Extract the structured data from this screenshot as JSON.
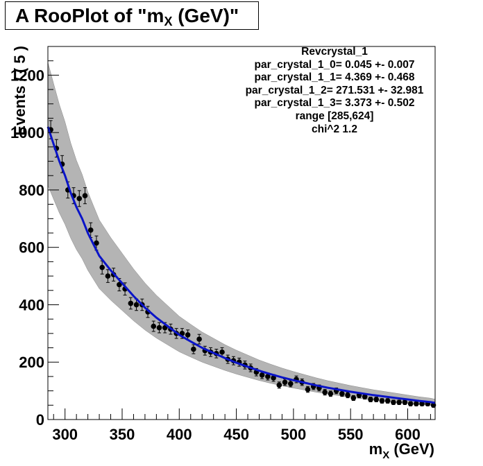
{
  "title": {
    "prefix": "A RooPlot of \"m",
    "sub": "X",
    "suffix": " (GeV)\""
  },
  "stats_box": {
    "lines": [
      "Revcrystal_1",
      "par_crystal_1_0= 0.045 +- 0.007",
      "par_crystal_1_1= 4.369 +- 0.468",
      "par_crystal_1_2= 271.531 +- 32.981",
      "par_crystal_1_3= 3.373 +- 0.502",
      "range [285,624]",
      "chi^2 1.2"
    ]
  },
  "colors": {
    "fit_line": "#0a14c8",
    "band": "#b4b4b4",
    "points": "#000000",
    "frame": "#000000"
  },
  "chart_data": {
    "type": "scatter",
    "xlabel": {
      "main": "m",
      "sub": "X",
      "rest": " (GeV)"
    },
    "ylabel": "Events / ( 5 )",
    "xlim": [
      285,
      624
    ],
    "ylim": [
      0,
      1300
    ],
    "x_ticks": [
      300,
      350,
      400,
      450,
      500,
      550,
      600
    ],
    "y_ticks": [
      0,
      200,
      400,
      600,
      800,
      1000,
      1200
    ],
    "grid": false,
    "series": [
      {
        "type": "points_with_errors",
        "points": [
          [
            287.5,
            1010
          ],
          [
            292.5,
            945
          ],
          [
            297.5,
            890
          ],
          [
            302.5,
            800
          ],
          [
            307.5,
            780
          ],
          [
            312.5,
            770
          ],
          [
            317.5,
            780
          ],
          [
            322.5,
            660
          ],
          [
            327.5,
            615
          ],
          [
            332.5,
            530
          ],
          [
            337.5,
            500
          ],
          [
            342.5,
            505
          ],
          [
            347.5,
            470
          ],
          [
            352.5,
            455
          ],
          [
            357.5,
            405
          ],
          [
            362.5,
            400
          ],
          [
            367.5,
            400
          ],
          [
            372.5,
            375
          ],
          [
            377.5,
            325
          ],
          [
            382.5,
            320
          ],
          [
            387.5,
            320
          ],
          [
            392.5,
            315
          ],
          [
            397.5,
            300
          ],
          [
            402.5,
            300
          ],
          [
            407.5,
            295
          ],
          [
            412.5,
            245
          ],
          [
            417.5,
            280
          ],
          [
            422.5,
            240
          ],
          [
            427.5,
            235
          ],
          [
            432.5,
            230
          ],
          [
            437.5,
            235
          ],
          [
            442.5,
            210
          ],
          [
            447.5,
            205
          ],
          [
            452.5,
            200
          ],
          [
            457.5,
            190
          ],
          [
            462.5,
            180
          ],
          [
            467.5,
            165
          ],
          [
            472.5,
            155
          ],
          [
            477.5,
            150
          ],
          [
            482.5,
            145
          ],
          [
            487.5,
            120
          ],
          [
            492.5,
            130
          ],
          [
            497.5,
            125
          ],
          [
            502.5,
            140
          ],
          [
            507.5,
            130
          ],
          [
            512.5,
            105
          ],
          [
            517.5,
            115
          ],
          [
            522.5,
            110
          ],
          [
            527.5,
            95
          ],
          [
            532.5,
            90
          ],
          [
            537.5,
            100
          ],
          [
            542.5,
            90
          ],
          [
            547.5,
            85
          ],
          [
            552.5,
            75
          ],
          [
            557.5,
            85
          ],
          [
            562.5,
            80
          ],
          [
            567.5,
            70
          ],
          [
            572.5,
            70
          ],
          [
            577.5,
            65
          ],
          [
            582.5,
            65
          ],
          [
            587.5,
            60
          ],
          [
            592.5,
            60
          ],
          [
            597.5,
            60
          ],
          [
            602.5,
            55
          ],
          [
            607.5,
            55
          ],
          [
            612.5,
            55
          ],
          [
            617.5,
            55
          ],
          [
            622.5,
            50
          ]
        ]
      },
      {
        "type": "fit_curve",
        "points": [
          [
            285,
            1020
          ],
          [
            290,
            960
          ],
          [
            295,
            900
          ],
          [
            300,
            850
          ],
          [
            305,
            790
          ],
          [
            310,
            740
          ],
          [
            315,
            700
          ],
          [
            320,
            650
          ],
          [
            325,
            610
          ],
          [
            330,
            570
          ],
          [
            340,
            520
          ],
          [
            350,
            475
          ],
          [
            360,
            430
          ],
          [
            370,
            390
          ],
          [
            380,
            355
          ],
          [
            390,
            325
          ],
          [
            400,
            295
          ],
          [
            410,
            272
          ],
          [
            420,
            250
          ],
          [
            430,
            232
          ],
          [
            440,
            214
          ],
          [
            450,
            198
          ],
          [
            460,
            184
          ],
          [
            470,
            170
          ],
          [
            480,
            158
          ],
          [
            490,
            147
          ],
          [
            500,
            137
          ],
          [
            510,
            128
          ],
          [
            520,
            119
          ],
          [
            530,
            111
          ],
          [
            540,
            104
          ],
          [
            550,
            97
          ],
          [
            560,
            91
          ],
          [
            570,
            85
          ],
          [
            580,
            80
          ],
          [
            590,
            75
          ],
          [
            600,
            70
          ],
          [
            610,
            65
          ],
          [
            620,
            61
          ],
          [
            624,
            58
          ]
        ]
      }
    ]
  }
}
